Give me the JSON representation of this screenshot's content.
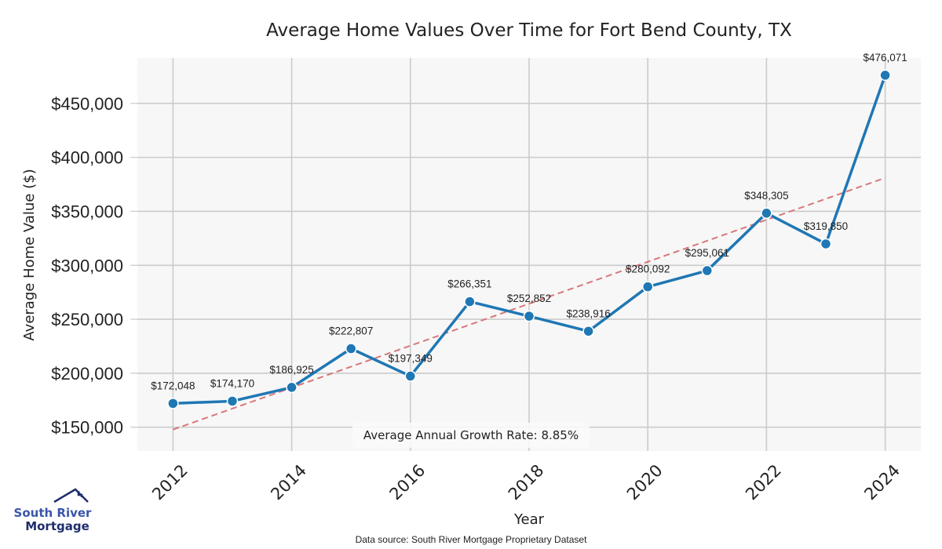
{
  "chart_data": {
    "type": "line",
    "title": "Average Home Values Over Time for Fort Bend County, TX",
    "xlabel": "Year",
    "ylabel": "Average Home Value ($)",
    "x": [
      2012,
      2013,
      2014,
      2015,
      2016,
      2017,
      2018,
      2019,
      2020,
      2021,
      2022,
      2023,
      2024
    ],
    "series": [
      {
        "name": "Average Home Value",
        "color": "#1f77b4",
        "values": [
          172048,
          174170,
          186925,
          222807,
          197349,
          266351,
          252852,
          238916,
          280092,
          295061,
          348305,
          319850,
          476071
        ],
        "labels": [
          "$172,048",
          "$174,170",
          "$186,925",
          "$222,807",
          "$197,349",
          "$266,351",
          "$252,852",
          "$238,916",
          "$280,092",
          "$295,061",
          "$348,305",
          "$319,850",
          "$476,071"
        ]
      }
    ],
    "trendline": {
      "name": "Trend",
      "color": "#d9777a",
      "style": "dashed",
      "start": [
        2012,
        147800
      ],
      "end": [
        2024,
        381000
      ]
    },
    "xticks": [
      2012,
      2014,
      2016,
      2018,
      2020,
      2022,
      2024
    ],
    "xtick_labels": [
      "2012",
      "2014",
      "2016",
      "2018",
      "2020",
      "2022",
      "2024"
    ],
    "yticks": [
      150000,
      200000,
      250000,
      300000,
      350000,
      400000,
      450000
    ],
    "ytick_labels": [
      "$150,000",
      "$200,000",
      "$250,000",
      "$300,000",
      "$350,000",
      "$400,000",
      "$450,000"
    ],
    "xlim": [
      2011.4,
      2024.6
    ],
    "ylim": [
      128000,
      492000
    ],
    "grid": true,
    "annotation": "Average Annual Growth Rate: 8.85%",
    "source": "Data source: South River Mortgage Proprietary Dataset"
  },
  "logo": {
    "line1": "South River",
    "line2": "Mortgage"
  }
}
